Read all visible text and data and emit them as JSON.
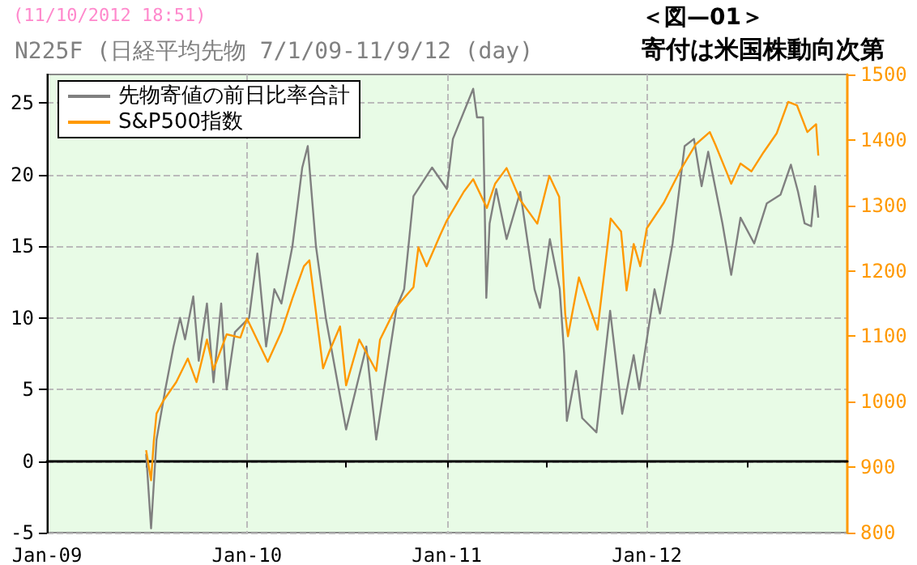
{
  "chart_data": {
    "type": "line",
    "title": "N225F (日経平均先物 7/1/09-11/9/12 (day)",
    "annotations": [
      "(11/10/2012 18:51)",
      "＜図—01＞",
      "寄付は米国株動向次第"
    ],
    "xlim": [
      "2009-01-01",
      "2013-01-01"
    ],
    "xticks": [
      {
        "value": "2009-01-01",
        "label": "Jan-09"
      },
      {
        "value": "2009-07-01",
        "label": null
      },
      {
        "value": "2010-01-01",
        "label": "Jan-10"
      },
      {
        "value": "2010-07-01",
        "label": null
      },
      {
        "value": "2011-01-01",
        "label": "Jan-11"
      },
      {
        "value": "2011-07-01",
        "label": null
      },
      {
        "value": "2012-01-01",
        "label": "Jan-12"
      },
      {
        "value": "2012-07-01",
        "label": null
      }
    ],
    "ylim": [
      -5,
      27
    ],
    "yticks": [
      -5,
      0,
      5,
      10,
      15,
      20,
      25
    ],
    "y2lim": [
      800,
      1500
    ],
    "y2ticks": [
      800,
      900,
      1000,
      1100,
      1200,
      1300,
      1400,
      1500
    ],
    "grid": true,
    "legend": "top left",
    "series": [
      {
        "name": "先物寄値の前日比率合計",
        "color": "#808080",
        "x": [
          "2009-07-01",
          "2009-07-10",
          "2009-07-20",
          "2009-08-05",
          "2009-08-20",
          "2009-09-01",
          "2009-09-10",
          "2009-09-25",
          "2009-10-05",
          "2009-10-20",
          "2009-11-01",
          "2009-11-15",
          "2009-11-25",
          "2009-12-10",
          "2010-01-05",
          "2010-01-20",
          "2010-02-05",
          "2010-02-20",
          "2010-03-05",
          "2010-03-25",
          "2010-04-12",
          "2010-04-22",
          "2010-05-07",
          "2010-05-25",
          "2010-07-01",
          "2010-08-07",
          "2010-08-25",
          "2010-10-01",
          "2010-10-15",
          "2010-11-01",
          "2010-12-05",
          "2011-01-01",
          "2011-01-12",
          "2011-02-18",
          "2011-02-25",
          "2011-03-08",
          "2011-03-14",
          "2011-03-20",
          "2011-04-01",
          "2011-04-20",
          "2011-05-15",
          "2011-06-10",
          "2011-06-20",
          "2011-07-08",
          "2011-07-26",
          "2011-08-03",
          "2011-08-08",
          "2011-08-25",
          "2011-09-05",
          "2011-10-01",
          "2011-10-26",
          "2011-11-17",
          "2011-12-08",
          "2011-12-18",
          "2012-01-01",
          "2012-01-15",
          "2012-01-25",
          "2012-02-17",
          "2012-03-10",
          "2012-03-27",
          "2012-04-10",
          "2012-04-22",
          "2012-05-18",
          "2012-06-03",
          "2012-06-20",
          "2012-07-15",
          "2012-08-07",
          "2012-09-01",
          "2012-09-20",
          "2012-10-03",
          "2012-10-15",
          "2012-10-27",
          "2012-11-03",
          "2012-11-09"
        ],
        "values": [
          0.5,
          -4.7,
          1.5,
          5,
          8,
          10,
          8.5,
          11.5,
          7,
          11,
          5.5,
          11,
          5,
          9,
          10,
          14.5,
          8,
          12,
          11,
          15,
          20.5,
          22,
          15,
          10,
          2.2,
          8,
          1.5,
          10.7,
          12,
          18.5,
          20.5,
          19,
          22.5,
          26,
          24,
          24,
          11.4,
          16.6,
          19,
          15.5,
          18.8,
          12,
          10.7,
          15.5,
          12,
          7.5,
          2.8,
          6.3,
          3,
          2,
          10.5,
          3.3,
          7.4,
          5,
          8.5,
          12,
          10.3,
          15.2,
          22,
          22.5,
          19.2,
          21.6,
          16.6,
          13,
          17,
          15.2,
          18,
          18.6,
          20.7,
          18.8,
          16.6,
          16.4,
          19.2,
          17
        ]
      },
      {
        "name": "S&P500指数",
        "color": "#ff9900",
        "axis": "y2",
        "x": [
          "2009-07-01",
          "2009-07-10",
          "2009-07-15",
          "2009-07-20",
          "2009-08-01",
          "2009-08-25",
          "2009-09-15",
          "2009-10-01",
          "2009-10-20",
          "2009-11-01",
          "2009-11-25",
          "2009-12-20",
          "2010-01-01",
          "2010-02-08",
          "2010-03-05",
          "2010-03-25",
          "2010-04-15",
          "2010-04-25",
          "2010-05-20",
          "2010-06-01",
          "2010-06-20",
          "2010-07-01",
          "2010-07-25",
          "2010-08-25",
          "2010-09-01",
          "2010-09-30",
          "2010-11-01",
          "2010-11-10",
          "2010-11-25",
          "2010-12-20",
          "2011-01-01",
          "2011-02-01",
          "2011-02-18",
          "2011-03-15",
          "2011-03-30",
          "2011-04-20",
          "2011-05-15",
          "2011-06-15",
          "2011-07-07",
          "2011-07-25",
          "2011-08-05",
          "2011-08-10",
          "2011-08-30",
          "2011-10-03",
          "2011-10-27",
          "2011-11-15",
          "2011-11-25",
          "2011-12-08",
          "2011-12-20",
          "2012-01-01",
          "2012-02-01",
          "2012-03-01",
          "2012-03-30",
          "2012-04-25",
          "2012-05-05",
          "2012-05-25",
          "2012-06-03",
          "2012-06-20",
          "2012-07-10",
          "2012-08-01",
          "2012-08-25",
          "2012-09-15",
          "2012-10-01",
          "2012-10-20",
          "2012-11-05",
          "2012-11-09"
        ],
        "values": [
          926,
          880,
          940,
          982,
          1001,
          1030,
          1066,
          1030,
          1095,
          1049,
          1103,
          1098,
          1127,
          1061,
          1107,
          1158,
          1207,
          1216,
          1051,
          1078,
          1115,
          1025,
          1095,
          1047,
          1095,
          1144,
          1175,
          1236,
          1207,
          1255,
          1277,
          1321,
          1340,
          1296,
          1333,
          1357,
          1308,
          1272,
          1345,
          1313,
          1134,
          1100,
          1190,
          1110,
          1280,
          1260,
          1170,
          1241,
          1207,
          1265,
          1304,
          1352,
          1393,
          1412,
          1393,
          1352,
          1333,
          1364,
          1352,
          1381,
          1410,
          1458,
          1453,
          1412,
          1424,
          1376
        ]
      }
    ]
  }
}
